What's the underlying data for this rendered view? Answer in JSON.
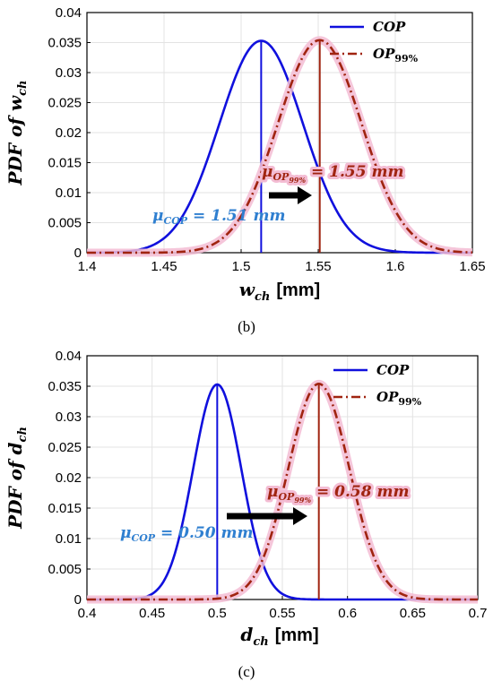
{
  "colors": {
    "cop": "#1010dd",
    "op99": "#a02410",
    "op99_glow": "#f3bcd3",
    "cop_text": "#2f7fd0",
    "op99_text": "#a02410",
    "grid": "#e3e3e3",
    "arrow": "#000000"
  },
  "chart_data": [
    {
      "type": "line",
      "caption": "(b)",
      "ylabel": {
        "main": "PDF of w",
        "sub": "ch"
      },
      "xlabel": {
        "main": "w",
        "sub": "ch",
        "unit": "[mm]"
      },
      "xlim": [
        1.4,
        1.65
      ],
      "ylim": [
        0,
        0.04
      ],
      "xticks": [
        "1.4",
        "1.45",
        "1.5",
        "1.55",
        "1.6",
        "1.65"
      ],
      "yticks": [
        "0",
        "0.005",
        "0.01",
        "0.015",
        "0.02",
        "0.025",
        "0.03",
        "0.035",
        "0.04"
      ],
      "grid": true,
      "legend_position": "top-right",
      "series": [
        {
          "name": "COP",
          "style": "solid",
          "mean": 1.513,
          "sd": 0.0272,
          "peak": 0.0353
        },
        {
          "name": "OP",
          "name_sub": "99%",
          "style": "dashdot",
          "mean": 1.551,
          "sd": 0.0272,
          "peak": 0.0354
        }
      ],
      "annotations": {
        "cop": {
          "mu": "μ",
          "sub": "COP",
          "value": " = 1.51 mm"
        },
        "op99": {
          "mu": "μ",
          "sub": "OP",
          "subsub": "99%",
          "value": " = 1.55 mm"
        }
      }
    },
    {
      "type": "line",
      "caption": "(c)",
      "ylabel": {
        "main": "PDF of d",
        "sub": "ch"
      },
      "xlabel": {
        "main": "d",
        "sub": "ch",
        "unit": "[mm]"
      },
      "xlim": [
        0.4,
        0.7
      ],
      "ylim": [
        0,
        0.04
      ],
      "xticks": [
        "0.4",
        "0.45",
        "0.5",
        "0.55",
        "0.6",
        "0.65",
        "0.7"
      ],
      "yticks": [
        "0",
        "0.005",
        "0.01",
        "0.015",
        "0.02",
        "0.025",
        "0.03",
        "0.035",
        "0.04"
      ],
      "grid": true,
      "legend_position": "top-right",
      "series": [
        {
          "name": "COP",
          "style": "solid",
          "mean": 0.5,
          "sd": 0.0185,
          "peak": 0.0353
        },
        {
          "name": "OP",
          "name_sub": "99%",
          "style": "dashdot",
          "mean": 0.578,
          "sd": 0.0235,
          "peak": 0.0354
        }
      ],
      "annotations": {
        "cop": {
          "mu": "μ",
          "sub": "COP",
          "value": " = 0.50 mm"
        },
        "op99": {
          "mu": "μ",
          "sub": "OP",
          "subsub": "99%",
          "value": " = 0.58 mm"
        }
      }
    }
  ]
}
